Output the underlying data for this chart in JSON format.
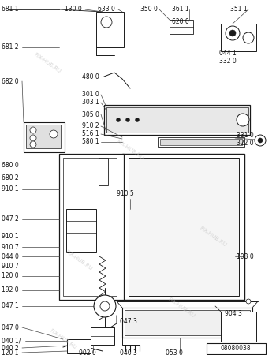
{
  "bg_color": "#ffffff",
  "watermark": "FIX-HUB.RU",
  "schema_id": "08080038",
  "figsize": [
    3.5,
    4.5
  ],
  "dpi": 100
}
